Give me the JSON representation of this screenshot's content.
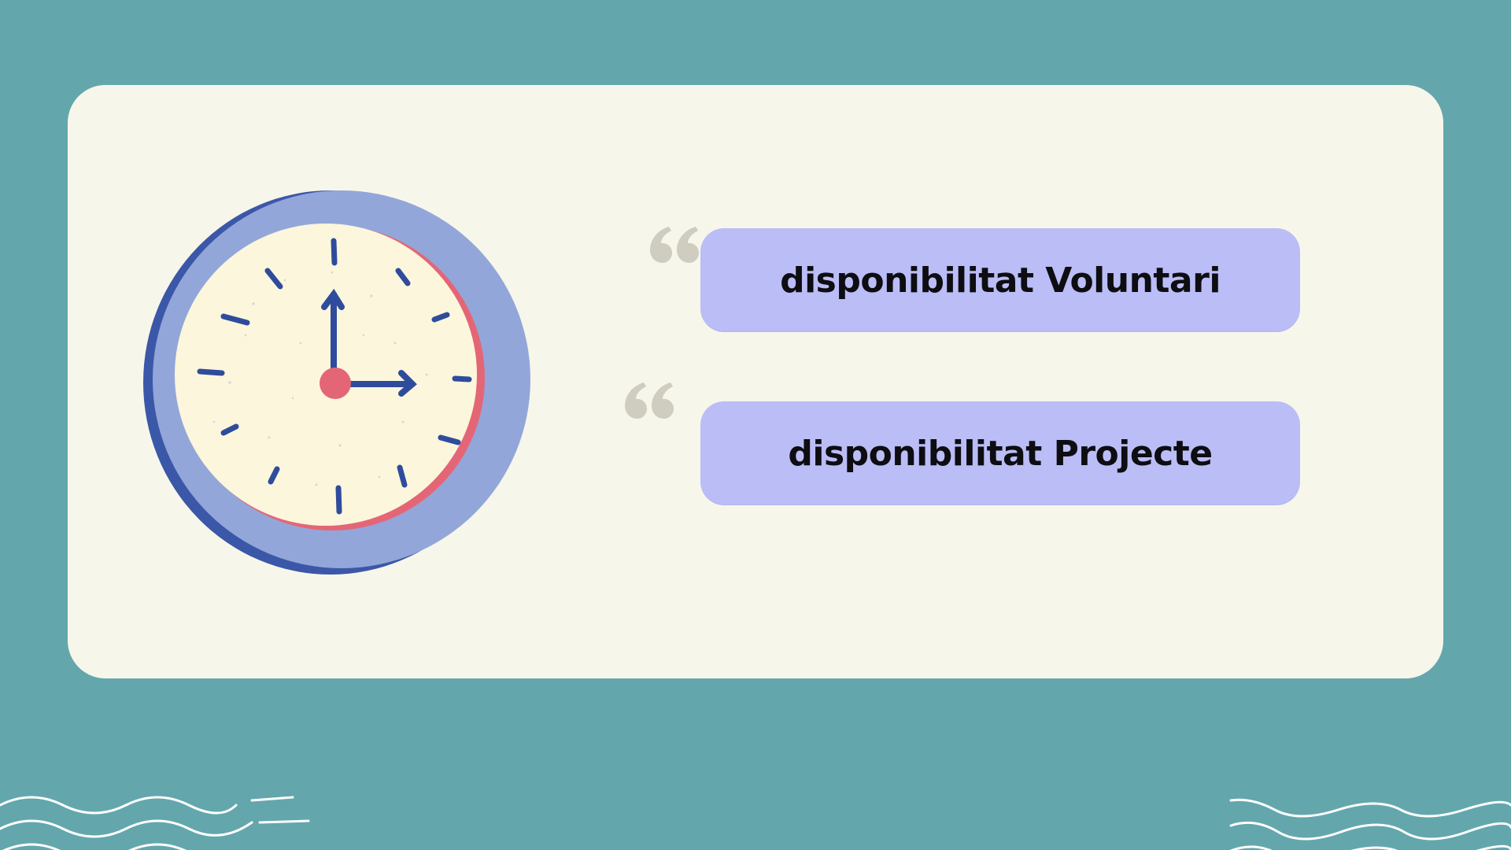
{
  "slide": {
    "items": [
      {
        "label": "disponibilitat Voluntari"
      },
      {
        "label": "disponibilitat Projecte"
      }
    ]
  },
  "icons": {
    "illustration": "wall-clock-icon",
    "quote": "quote-open-icon",
    "decoration": "wave-lines"
  },
  "colors": {
    "background": "#63a7ad",
    "card": "#f7f6ea",
    "pill": "#bbbdf6",
    "clock_ring": "#93a6d9",
    "clock_face": "#fbf6dc",
    "clock_hands": "#2f4c9c",
    "clock_center": "#e46676",
    "quote_mark": "#cfcdc0",
    "text": "#0d0d12"
  }
}
